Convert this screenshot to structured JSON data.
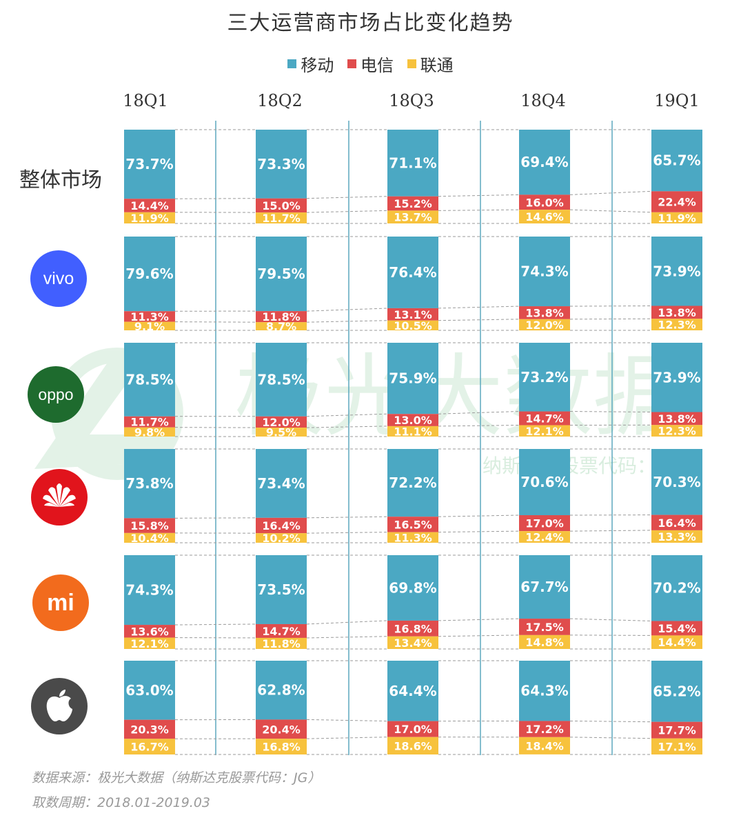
{
  "title": "三大运营商市场占比变化趋势",
  "legend": [
    {
      "name": "移动",
      "color": "#4BA8C3"
    },
    {
      "name": "电信",
      "color": "#E04C4C"
    },
    {
      "name": "联通",
      "color": "#F7C23D"
    }
  ],
  "periods": [
    "18Q1",
    "18Q2",
    "18Q3",
    "18Q4",
    "19Q1"
  ],
  "rows": [
    {
      "label": "整体市场",
      "icon": "overall-text"
    },
    {
      "label": "vivo",
      "icon": "vivo-logo-icon"
    },
    {
      "label": "oppo",
      "icon": "oppo-logo-icon"
    },
    {
      "label": "",
      "icon": "huawei-logo-icon"
    },
    {
      "label": "mi",
      "icon": "xiaomi-logo-icon"
    },
    {
      "label": "",
      "icon": "apple-logo-icon"
    }
  ],
  "watermark": {
    "main": "极光大数据",
    "sub": "纳斯达克股票代码：JG"
  },
  "footer": {
    "source": "数据来源：极光大数据（纳斯达克股票代码：JG）",
    "period": "取数周期：2018.01-2019.03"
  },
  "chart_data": {
    "type": "bar",
    "stacked": true,
    "unit": "%",
    "series_names": [
      "移动",
      "电信",
      "联通"
    ],
    "colors": {
      "移动": "#4BA8C3",
      "电信": "#E04C4C",
      "联通": "#F7C23D"
    },
    "categories": [
      "18Q1",
      "18Q2",
      "18Q3",
      "18Q4",
      "19Q1"
    ],
    "groups": [
      {
        "name": "整体市场",
        "移动": [
          73.7,
          73.3,
          71.1,
          69.4,
          65.7
        ],
        "电信": [
          14.4,
          15.0,
          15.2,
          16.0,
          22.4
        ],
        "联通": [
          11.9,
          11.7,
          13.7,
          14.6,
          11.9
        ]
      },
      {
        "name": "vivo",
        "移动": [
          79.6,
          79.5,
          76.4,
          74.3,
          73.9
        ],
        "电信": [
          11.3,
          11.8,
          13.1,
          13.8,
          13.8
        ],
        "联通": [
          9.1,
          8.7,
          10.5,
          12.0,
          12.3
        ]
      },
      {
        "name": "oppo",
        "移动": [
          78.5,
          78.5,
          75.9,
          73.2,
          73.9
        ],
        "电信": [
          11.7,
          12.0,
          13.0,
          14.7,
          13.8
        ],
        "联通": [
          9.8,
          9.5,
          11.1,
          12.1,
          12.3
        ]
      },
      {
        "name": "华为",
        "移动": [
          73.8,
          73.4,
          72.2,
          70.6,
          70.3
        ],
        "电信": [
          15.8,
          16.4,
          16.5,
          17.0,
          16.4
        ],
        "联通": [
          10.4,
          10.2,
          11.3,
          12.4,
          13.3
        ]
      },
      {
        "name": "小米",
        "移动": [
          74.3,
          73.5,
          69.8,
          67.7,
          70.2
        ],
        "电信": [
          13.6,
          14.7,
          16.8,
          17.5,
          15.4
        ],
        "联通": [
          12.1,
          11.8,
          13.4,
          14.8,
          14.4
        ]
      },
      {
        "name": "苹果",
        "移动": [
          63.0,
          62.8,
          64.4,
          64.3,
          65.2
        ],
        "电信": [
          20.3,
          20.4,
          17.0,
          17.2,
          17.7
        ],
        "联通": [
          16.7,
          16.8,
          18.6,
          18.4,
          17.1
        ]
      }
    ]
  }
}
